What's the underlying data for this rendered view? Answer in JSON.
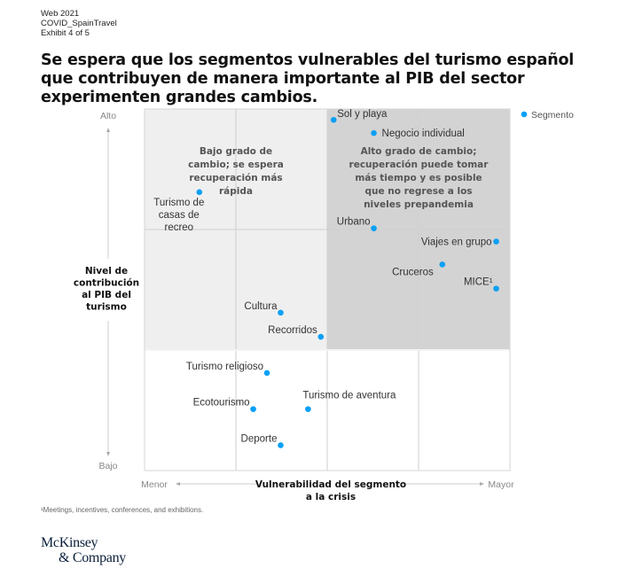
{
  "meta": {
    "line1": "Web 2021",
    "line2": "COVID_SpainTravel",
    "line3": "Exhibit 4 of 5"
  },
  "title": "Se espera que los segmentos vulnerables del turismo español que contribuyen de manera importante al PIB del sector experimenten grandes cambios.",
  "footnote": "¹Meetings, incentives, conferences, and exhibitions.",
  "logo": {
    "line1": "McKinsey",
    "line2": "& Company"
  },
  "colors": {
    "point": "#0aa0f5",
    "quadrant_low_change": "#efefef",
    "quadrant_high_change": "#d3d3d3",
    "grid": "#cfcfcf"
  },
  "chart_data": {
    "type": "scatter",
    "title": "Se espera que los segmentos vulnerables del turismo español que contribuyen de manera importante al PIB del sector experimenten grandes cambios.",
    "xlabel_lines": [
      "Vulnerabilidad del segmento",
      "a la crisis"
    ],
    "ylabel_lines": [
      "Nivel de",
      "contribución",
      "al PIB del",
      "turismo"
    ],
    "x_low_label": "Menor",
    "x_high_label": "Mayor",
    "y_high_label": "Alto",
    "y_low_label": "Bajo",
    "xlim": [
      0,
      4
    ],
    "ylim": [
      0,
      3
    ],
    "x_gridlines": [
      1,
      2,
      3
    ],
    "y_gridlines": [
      1,
      2
    ],
    "legend": {
      "label": "Segmento",
      "position": "top-right"
    },
    "regions": [
      {
        "name": "low-change",
        "x": [
          0,
          2
        ],
        "y": [
          1,
          3
        ],
        "text_lines": [
          "Bajo grado de",
          "cambio; se espera",
          "recuperación más",
          "rápida"
        ]
      },
      {
        "name": "high-change",
        "x": [
          2,
          4
        ],
        "y": [
          1,
          3
        ],
        "text_lines": [
          "Alto grado de cambio;",
          "recuperación puede tomar",
          "más tiempo y es posible",
          "que no regrese a los",
          "niveles prepandemia"
        ]
      }
    ],
    "points": [
      {
        "label_lines": [
          "Turismo de",
          "casas de",
          "recreo"
        ],
        "x": 0.6,
        "y": 2.31,
        "anchor": "below-left"
      },
      {
        "label_lines": [
          "Sol y playa"
        ],
        "x": 2.07,
        "y": 2.91,
        "anchor": "right-up"
      },
      {
        "label_lines": [
          "Negocio individual"
        ],
        "x": 2.51,
        "y": 2.8,
        "anchor": "right"
      },
      {
        "label_lines": [
          "Urbano"
        ],
        "x": 2.51,
        "y": 2.01,
        "anchor": "left-up"
      },
      {
        "label_lines": [
          "Viajes en grupo"
        ],
        "x": 3.85,
        "y": 1.9,
        "anchor": "left"
      },
      {
        "label_lines": [
          "Cruceros"
        ],
        "x": 3.26,
        "y": 1.71,
        "anchor": "left-down"
      },
      {
        "label_lines": [
          "MICE¹"
        ],
        "x": 3.85,
        "y": 1.51,
        "anchor": "left-up"
      },
      {
        "label_lines": [
          "Cultura"
        ],
        "x": 1.49,
        "y": 1.31,
        "anchor": "left-up"
      },
      {
        "label_lines": [
          "Recorridos"
        ],
        "x": 1.93,
        "y": 1.11,
        "anchor": "left-up"
      },
      {
        "label_lines": [
          "Turismo religioso"
        ],
        "x": 1.34,
        "y": 0.81,
        "anchor": "left-up"
      },
      {
        "label_lines": [
          "Ecotourismo"
        ],
        "x": 1.19,
        "y": 0.51,
        "anchor": "left-up"
      },
      {
        "label_lines": [
          "Turismo de aventura"
        ],
        "x": 1.79,
        "y": 0.51,
        "anchor": "above-right"
      },
      {
        "label_lines": [
          "Deporte"
        ],
        "x": 1.49,
        "y": 0.21,
        "anchor": "left-up"
      }
    ]
  }
}
